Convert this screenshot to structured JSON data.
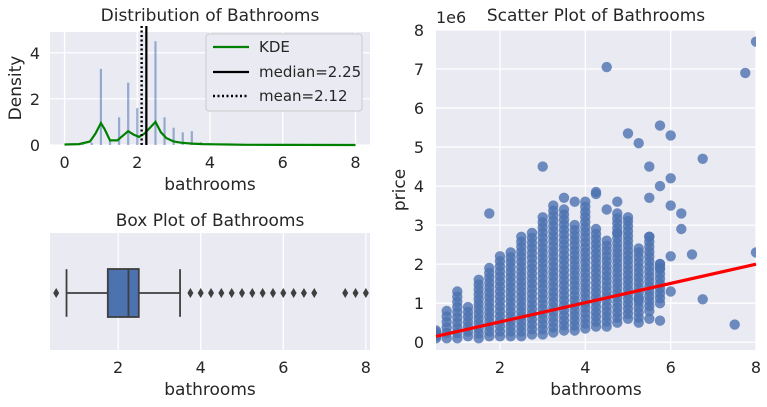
{
  "colors": {
    "panel_bg": "#EAEAF2",
    "grid": "#FFFFFF",
    "primary": "#4C72B0",
    "kde": "#008000",
    "regression": "#FF0000",
    "text": "#262626"
  },
  "chart_data": [
    {
      "type": "histogram",
      "title": "Distribution of Bathrooms",
      "xlabel": "bathrooms",
      "ylabel": "Density",
      "xlim": [
        -0.4,
        8.4
      ],
      "ylim": [
        0,
        4.9
      ],
      "xticks": [
        0,
        2,
        4,
        6,
        8
      ],
      "yticks": [
        0,
        2,
        4
      ],
      "grid": true,
      "bars": [
        {
          "x": 0.5,
          "density": 0.12
        },
        {
          "x": 0.75,
          "density": 0.1
        },
        {
          "x": 1.0,
          "density": 3.3
        },
        {
          "x": 1.25,
          "density": 0.2
        },
        {
          "x": 1.5,
          "density": 1.2
        },
        {
          "x": 1.75,
          "density": 2.7
        },
        {
          "x": 2.0,
          "density": 1.6
        },
        {
          "x": 2.25,
          "density": 2.2
        },
        {
          "x": 2.5,
          "density": 4.5
        },
        {
          "x": 2.75,
          "density": 1.2
        },
        {
          "x": 3.0,
          "density": 0.75
        },
        {
          "x": 3.25,
          "density": 0.55
        },
        {
          "x": 3.5,
          "density": 0.6
        },
        {
          "x": 3.75,
          "density": 0.12
        },
        {
          "x": 4.0,
          "density": 0.08
        },
        {
          "x": 4.25,
          "density": 0.04
        },
        {
          "x": 4.5,
          "density": 0.03
        },
        {
          "x": 4.75,
          "density": 0.02
        },
        {
          "x": 5.0,
          "density": 0.02
        }
      ],
      "kde": {
        "x": [
          0.0,
          0.4,
          0.7,
          0.85,
          1.0,
          1.1,
          1.25,
          1.45,
          1.6,
          1.75,
          1.9,
          2.05,
          2.2,
          2.35,
          2.5,
          2.65,
          2.8,
          3.0,
          3.2,
          3.5,
          3.8,
          4.1,
          4.5,
          5.0,
          6.0,
          8.0
        ],
        "y": [
          0.02,
          0.04,
          0.15,
          0.5,
          0.95,
          0.7,
          0.2,
          0.2,
          0.4,
          0.6,
          0.45,
          0.35,
          0.5,
          0.75,
          1.0,
          0.55,
          0.3,
          0.15,
          0.1,
          0.06,
          0.04,
          0.03,
          0.02,
          0.01,
          0.005,
          0.0
        ]
      },
      "median": 2.25,
      "mean": 2.12,
      "legend_position": "upper right",
      "legend": [
        "KDE",
        "median=2.25",
        "mean=2.12"
      ]
    },
    {
      "type": "boxplot",
      "title": "Box Plot of Bathrooms",
      "xlabel": "bathrooms",
      "xlim": [
        0.35,
        8.1
      ],
      "xticks": [
        2,
        4,
        6,
        8
      ],
      "grid": true,
      "whisker_low": 0.75,
      "q1": 1.75,
      "median": 2.25,
      "q3": 2.5,
      "whisker_high": 3.5,
      "outliers": [
        0.5,
        3.75,
        4.0,
        4.25,
        4.5,
        4.75,
        5.0,
        5.25,
        5.5,
        5.75,
        6.0,
        6.25,
        6.5,
        6.75,
        7.5,
        7.75,
        8.0
      ]
    },
    {
      "type": "scatter",
      "title": "Scatter Plot of Bathrooms",
      "xlabel": "bathrooms",
      "ylabel": "price",
      "y_scale_note": "1e6",
      "xlim": [
        0.5,
        8.0
      ],
      "ylim": [
        -0.2,
        8.0
      ],
      "xticks": [
        2,
        4,
        6,
        8
      ],
      "yticks": [
        0,
        1,
        2,
        3,
        4,
        5,
        6,
        7,
        8
      ],
      "grid": true,
      "regression": {
        "x": [
          0.5,
          8.0
        ],
        "y": [
          0.15,
          2.0
        ]
      },
      "columns": [
        {
          "x": 0.5,
          "ymin": 0.1,
          "ymax": 0.3
        },
        {
          "x": 0.75,
          "ymin": 0.1,
          "ymax": 0.8
        },
        {
          "x": 1.0,
          "ymin": 0.1,
          "ymax": 1.3
        },
        {
          "x": 1.25,
          "ymin": 0.15,
          "ymax": 0.9
        },
        {
          "x": 1.5,
          "ymin": 0.1,
          "ymax": 1.6
        },
        {
          "x": 1.75,
          "ymin": 0.15,
          "ymax": 1.9
        },
        {
          "x": 2.0,
          "ymin": 0.15,
          "ymax": 2.2
        },
        {
          "x": 2.25,
          "ymin": 0.15,
          "ymax": 2.3
        },
        {
          "x": 2.5,
          "ymin": 0.15,
          "ymax": 2.7
        },
        {
          "x": 2.75,
          "ymin": 0.2,
          "ymax": 2.8
        },
        {
          "x": 3.0,
          "ymin": 0.2,
          "ymax": 3.2
        },
        {
          "x": 3.25,
          "ymin": 0.25,
          "ymax": 3.5
        },
        {
          "x": 3.5,
          "ymin": 0.3,
          "ymax": 3.4
        },
        {
          "x": 3.75,
          "ymin": 0.3,
          "ymax": 3.0
        },
        {
          "x": 4.0,
          "ymin": 0.35,
          "ymax": 3.6
        },
        {
          "x": 4.25,
          "ymin": 0.4,
          "ymax": 2.9
        },
        {
          "x": 4.5,
          "ymin": 0.4,
          "ymax": 2.6
        },
        {
          "x": 4.75,
          "ymin": 0.5,
          "ymax": 3.3
        },
        {
          "x": 5.0,
          "ymin": 0.6,
          "ymax": 3.1
        },
        {
          "x": 5.25,
          "ymin": 0.5,
          "ymax": 2.3
        },
        {
          "x": 5.5,
          "ymin": 0.8,
          "ymax": 2.7
        },
        {
          "x": 5.75,
          "ymin": 1.0,
          "ymax": 2.0
        }
      ],
      "points": [
        [
          1.75,
          3.3
        ],
        [
          3.0,
          4.5
        ],
        [
          3.5,
          3.7
        ],
        [
          3.75,
          3.6
        ],
        [
          4.25,
          3.85
        ],
        [
          4.25,
          3.8
        ],
        [
          4.5,
          3.4
        ],
        [
          4.5,
          7.05
        ],
        [
          4.75,
          3.6
        ],
        [
          4.75,
          2.8
        ],
        [
          5.0,
          5.35
        ],
        [
          5.0,
          3.2
        ],
        [
          5.25,
          5.1
        ],
        [
          5.25,
          2.4
        ],
        [
          5.5,
          4.5
        ],
        [
          5.5,
          3.7
        ],
        [
          5.5,
          2.7
        ],
        [
          5.75,
          5.55
        ],
        [
          5.75,
          4.0
        ],
        [
          5.75,
          2.0
        ],
        [
          5.75,
          1.9
        ],
        [
          6.0,
          5.3
        ],
        [
          6.0,
          4.2
        ],
        [
          6.0,
          3.5
        ],
        [
          6.0,
          2.2
        ],
        [
          6.0,
          1.3
        ],
        [
          6.25,
          3.3
        ],
        [
          6.25,
          2.9
        ],
        [
          6.5,
          2.25
        ],
        [
          6.75,
          4.7
        ],
        [
          6.75,
          1.1
        ],
        [
          5.25,
          1.1
        ],
        [
          5.5,
          0.6
        ],
        [
          5.75,
          0.55
        ],
        [
          7.5,
          0.45
        ],
        [
          7.75,
          6.9
        ],
        [
          8.0,
          7.7
        ],
        [
          8.0,
          2.3
        ],
        [
          0.5,
          0.25
        ],
        [
          0.5,
          0.15
        ]
      ]
    }
  ]
}
